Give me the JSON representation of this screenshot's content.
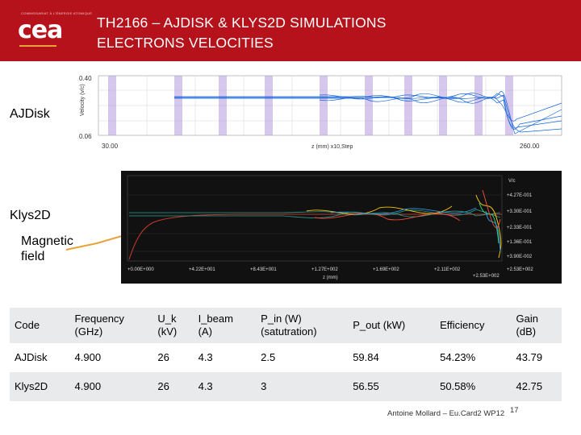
{
  "header": {
    "logo_small_text": "COMMISSARIAT À L'ÉNERGIE ATOMIQUE",
    "logo_text": "cea",
    "title_line1": "TH2166 – AJDISK & KLYS2D SIMULATIONS",
    "title_line2": "ELECTRONS VELOCITIES",
    "color": "#b5121b"
  },
  "labels": {
    "ajdisk": "AJDisk",
    "klys2d": "Klys2D",
    "magnetic_line1": "Magnetic",
    "magnetic_line2": "field"
  },
  "plot_ajdisk": {
    "y_axis_label": "Velocity (v/c)",
    "y_top": "0.40",
    "y_bottom": "0.06",
    "x_left": "30.00",
    "x_mid": "z (mm)  x10,Step",
    "x_right": "260.00"
  },
  "plot_klys2d": {
    "x_ticks": [
      "+0.00E+000",
      "+4.22E+001",
      "+8.43E+001",
      "+1.27E+002",
      "+1.69E+002",
      "+2.11E+002",
      "+2.53E+002"
    ],
    "x_label": "z (mm)",
    "y_top_label": "V/c",
    "y_ticks": [
      "+4.27E-001",
      "+3.30E-001",
      "+2.33E-001",
      "+1.36E-001",
      "+3.90E-002",
      "+2.53E+002"
    ]
  },
  "table": {
    "headers": [
      "Code",
      "Frequency (GHz)",
      "U_k (kV)",
      "I_beam (A)",
      "P_in (W) (satutration)",
      "P_out (kW)",
      "Efficiency",
      "Gain (dB)"
    ],
    "header_lines": [
      [
        "Code",
        ""
      ],
      [
        "Frequency",
        "(GHz)"
      ],
      [
        "U_k",
        "(kV)"
      ],
      [
        "I_beam",
        "(A)"
      ],
      [
        "P_in (W)",
        "(satutration)"
      ],
      [
        "P_out (kW)",
        ""
      ],
      [
        "Efficiency",
        ""
      ],
      [
        "Gain",
        "(dB)"
      ]
    ],
    "rows": [
      [
        "AJDisk",
        "4.900",
        "26",
        "4.3",
        "2.5",
        "59.84",
        "54.23%",
        "43.79"
      ],
      [
        "Klys2D",
        "4.900",
        "26",
        "4.3",
        "3",
        "56.55",
        "50.58%",
        "42.75"
      ]
    ]
  },
  "footer": {
    "text": "Antoine Mollard – Eu.Card2 WP12",
    "page": "17"
  }
}
